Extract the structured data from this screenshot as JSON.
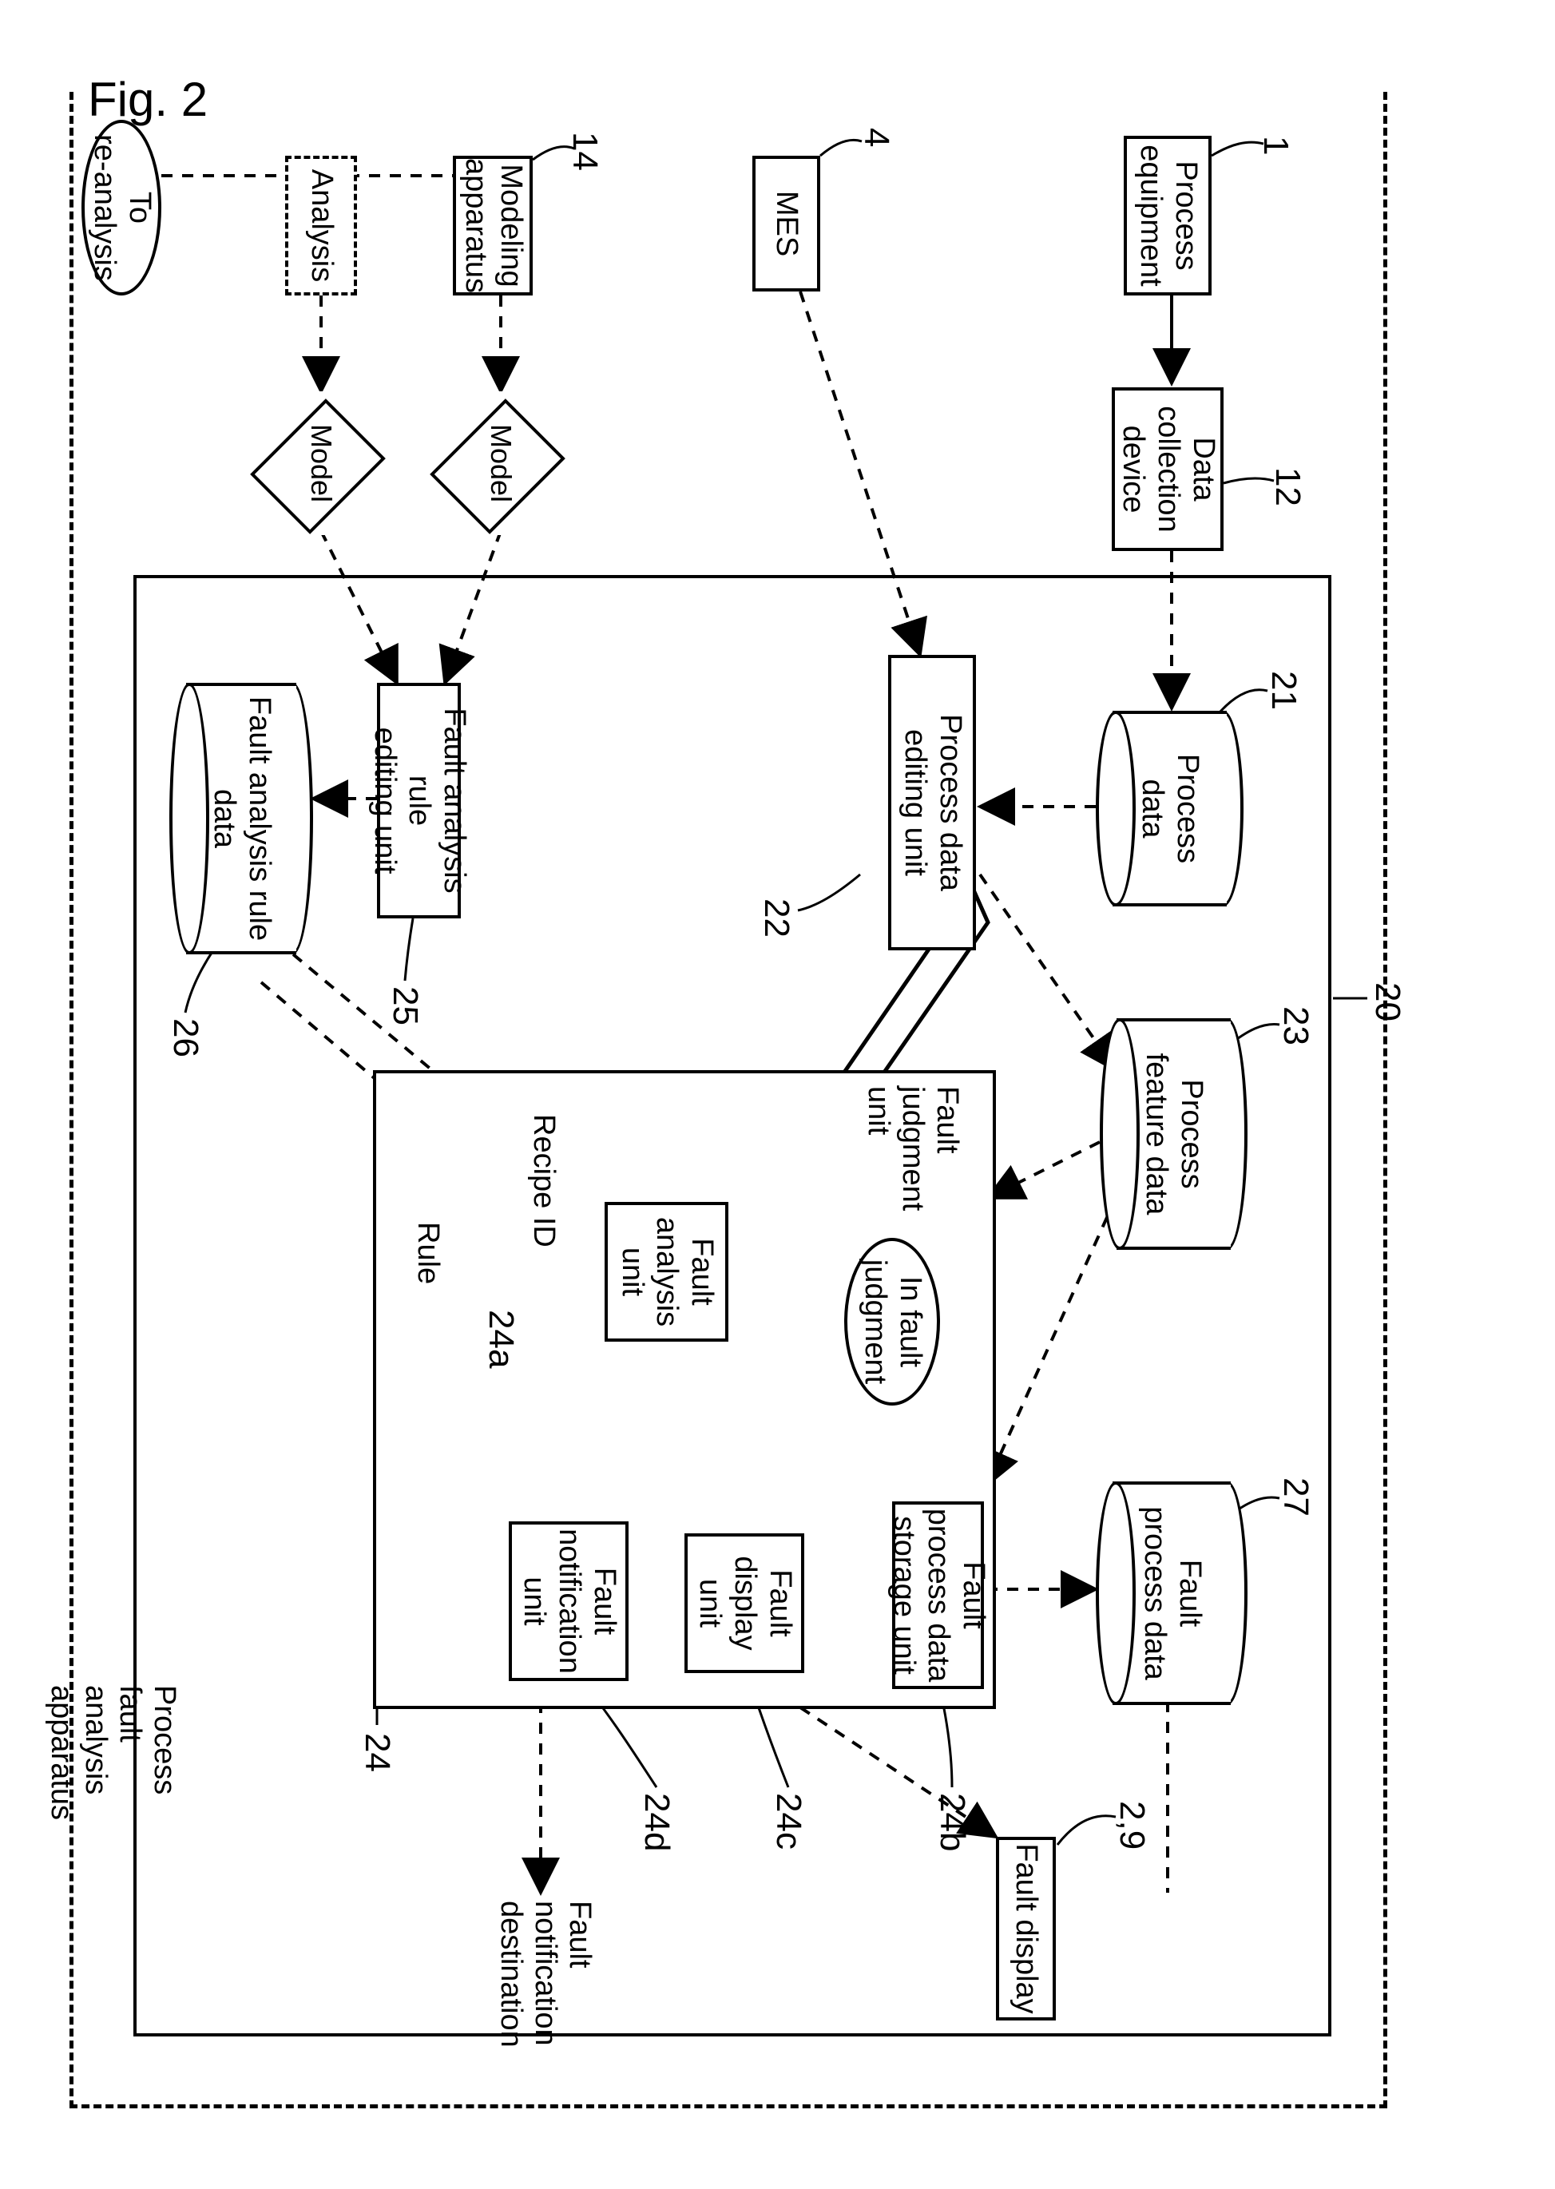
{
  "figure_label": "Fig. 2",
  "stroke_color": "#000000",
  "background_color": "#ffffff",
  "font_family": "Arial",
  "external": {
    "process_equipment": {
      "label": "Process\nequipment",
      "ref": "1"
    },
    "data_collection": {
      "label": "Data\ncollection\ndevice",
      "ref": "12"
    },
    "mes": {
      "label": "MES",
      "ref": "4"
    },
    "modeling": {
      "label": "Modeling\napparatus",
      "ref": "14"
    },
    "analysis": {
      "label": "Analysis"
    },
    "to_reanalysis": {
      "label": "To\nre-analysis"
    },
    "model1": {
      "label": "Model"
    },
    "model2": {
      "label": "Model"
    }
  },
  "apparatus": {
    "ref": "20",
    "caption": "Process fault analysis apparatus",
    "process_data_db": {
      "label": "Process\ndata",
      "ref": "21"
    },
    "feature_db": {
      "label": "Process\nfeature data",
      "ref": "23"
    },
    "fault_db": {
      "label": "Fault\nprocess data",
      "ref": "27"
    },
    "rule_db": {
      "label": "Fault analysis rule\ndata",
      "ref": "26"
    },
    "process_edit": {
      "label": "Process data\nediting unit",
      "ref": "22"
    },
    "rule_edit": {
      "label": "Fault analysis rule\nediting unit",
      "ref": "25"
    },
    "judgment_container": {
      "ref": "24"
    },
    "judgment_unit_label": "Fault\njudgment\nunit",
    "in_fault_judgment": "In fault\njudgment",
    "analysis_unit": {
      "label": "Fault\nanalysis\nunit",
      "ref": "24a"
    },
    "storage_unit": {
      "label": "Fault process data\nstorage unit",
      "ref": "24b"
    },
    "display_unit": {
      "label": "Fault\ndisplay\nunit",
      "ref": "24c"
    },
    "notify_unit": {
      "label": "Fault\nnotification\nunit",
      "ref": "24d"
    },
    "recipe_id_label": "Recipe ID",
    "rule_label": "Rule"
  },
  "outputs": {
    "fault_display": {
      "label": "Fault display",
      "ref": "2,9"
    },
    "fault_notification_dest": "Fault\nnotification\ndestination"
  }
}
